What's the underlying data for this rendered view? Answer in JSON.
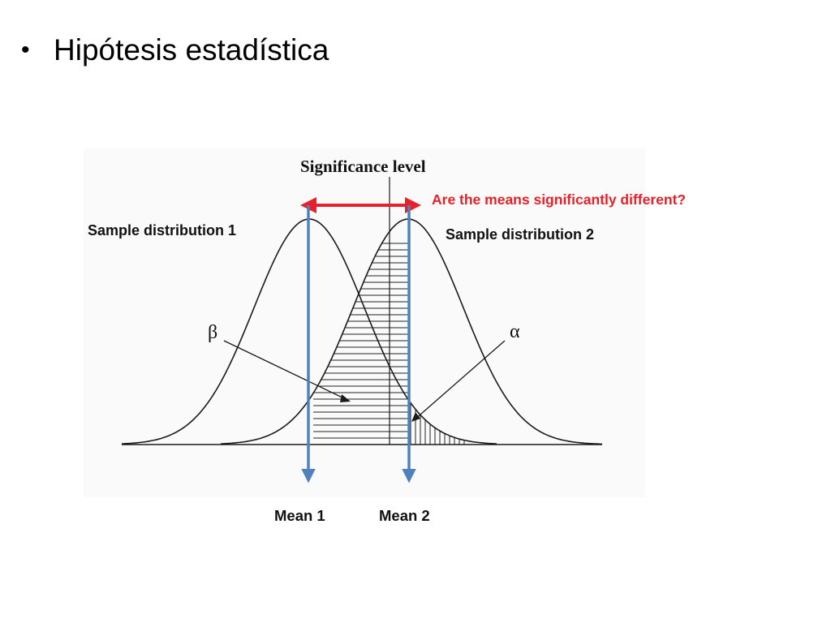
{
  "slide": {
    "bullet": "•",
    "title": "Hipótesis estadística"
  },
  "diagram": {
    "significance_label": "Significance level",
    "question": "Are the means significantly different?",
    "distribution_1_label": "Sample distribution 1",
    "distribution_2_label": "Sample distribution 2",
    "beta_label": "β",
    "alpha_label": "α",
    "mean_1_label": "Mean 1",
    "mean_2_label": "Mean 2",
    "colors": {
      "question_text": "#e8202a",
      "double_arrow": "#e8202a",
      "mean_arrows": "#4f81bd",
      "curves": "#1a1a1a"
    }
  }
}
